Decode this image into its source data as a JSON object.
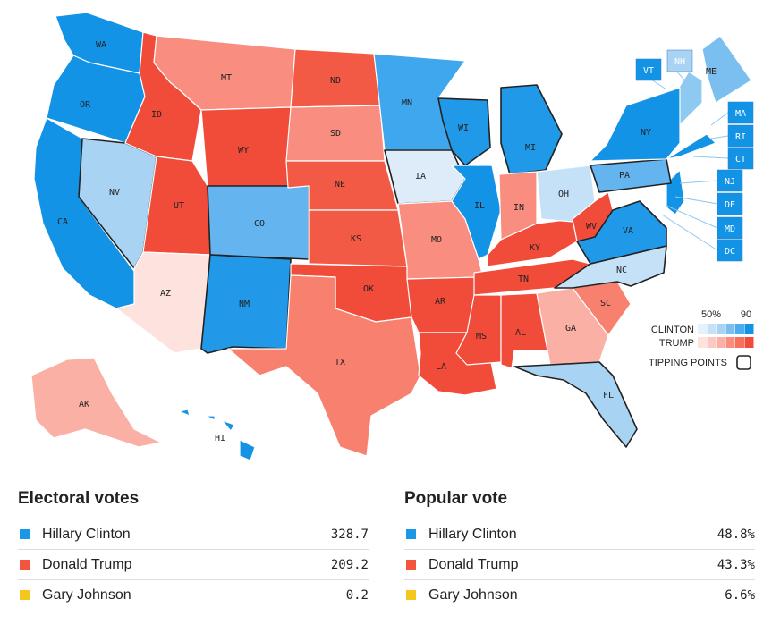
{
  "colors": {
    "clinton": "#1b97e8",
    "trump": "#f2543f",
    "johnson": "#f5c71d"
  },
  "map": {
    "states": [
      {
        "abbr": "WA",
        "fill": "#1393e6"
      },
      {
        "abbr": "OR",
        "fill": "#1393e6"
      },
      {
        "abbr": "CA",
        "fill": "#1393e6"
      },
      {
        "abbr": "NV",
        "fill": "#a8d3f3"
      },
      {
        "abbr": "ID",
        "fill": "#f04c39"
      },
      {
        "abbr": "MT",
        "fill": "#f98e80"
      },
      {
        "abbr": "WY",
        "fill": "#f04c39"
      },
      {
        "abbr": "UT",
        "fill": "#f04c39"
      },
      {
        "abbr": "AZ",
        "fill": "#fde2dd"
      },
      {
        "abbr": "CO",
        "fill": "#63b4ef"
      },
      {
        "abbr": "NM",
        "fill": "#2199e8"
      },
      {
        "abbr": "ND",
        "fill": "#f35a46"
      },
      {
        "abbr": "SD",
        "fill": "#f98e80"
      },
      {
        "abbr": "NE",
        "fill": "#f35a46"
      },
      {
        "abbr": "KS",
        "fill": "#f35a46"
      },
      {
        "abbr": "OK",
        "fill": "#f04c39"
      },
      {
        "abbr": "TX",
        "fill": "#f7806f"
      },
      {
        "abbr": "MN",
        "fill": "#3ea7ee"
      },
      {
        "abbr": "IA",
        "fill": "#deecfa"
      },
      {
        "abbr": "MO",
        "fill": "#f98e80"
      },
      {
        "abbr": "AR",
        "fill": "#f04c39"
      },
      {
        "abbr": "LA",
        "fill": "#f04c39"
      },
      {
        "abbr": "WI",
        "fill": "#1f99e8"
      },
      {
        "abbr": "IL",
        "fill": "#1393e6"
      },
      {
        "abbr": "MS",
        "fill": "#f04c39"
      },
      {
        "abbr": "MI",
        "fill": "#1f99e8"
      },
      {
        "abbr": "IN",
        "fill": "#f98e80"
      },
      {
        "abbr": "KY",
        "fill": "#f04c39"
      },
      {
        "abbr": "TN",
        "fill": "#f04c39"
      },
      {
        "abbr": "AL",
        "fill": "#f04c39"
      },
      {
        "abbr": "OH",
        "fill": "#c5e1f7"
      },
      {
        "abbr": "GA",
        "fill": "#fab0a5"
      },
      {
        "abbr": "FL",
        "fill": "#a8d3f3"
      },
      {
        "abbr": "SC",
        "fill": "#f7806f"
      },
      {
        "abbr": "NC",
        "fill": "#c5e1f7"
      },
      {
        "abbr": "WV",
        "fill": "#f04c39"
      },
      {
        "abbr": "VA",
        "fill": "#1f99e8"
      },
      {
        "abbr": "PA",
        "fill": "#63b4ef"
      },
      {
        "abbr": "NY",
        "fill": "#1393e6"
      },
      {
        "abbr": "ME",
        "fill": "#7bbff0"
      },
      {
        "abbr": "AK",
        "fill": "#fab0a5"
      },
      {
        "abbr": "HI",
        "fill": "#1393e6"
      }
    ],
    "boxed_states": [
      {
        "abbr": "VT",
        "fill": "#1393e6"
      },
      {
        "abbr": "NH",
        "fill": "#a8d3f3"
      },
      {
        "abbr": "MA",
        "fill": "#1393e6"
      },
      {
        "abbr": "RI",
        "fill": "#1393e6"
      },
      {
        "abbr": "CT",
        "fill": "#1393e6"
      },
      {
        "abbr": "NJ",
        "fill": "#1393e6"
      },
      {
        "abbr": "DE",
        "fill": "#1393e6"
      },
      {
        "abbr": "MD",
        "fill": "#1393e6"
      },
      {
        "abbr": "DC",
        "fill": "#1393e6"
      }
    ],
    "tipping_points": [
      "NV",
      "CO",
      "IA",
      "WI",
      "MI",
      "PA",
      "VA",
      "NC",
      "FL",
      "NM"
    ],
    "legend": {
      "scale_low": "50%",
      "scale_high": "90",
      "clinton_label": "CLINTON",
      "trump_label": "TRUMP",
      "tipping_label": "TIPPING POINTS",
      "clinton_ramp": [
        "#e5f2fc",
        "#c5e1f7",
        "#a8d3f3",
        "#7bbff0",
        "#4eacee",
        "#1393e6"
      ],
      "trump_ramp": [
        "#fde2dd",
        "#fcc9c1",
        "#fab0a5",
        "#f98e80",
        "#f5705d",
        "#f04c39"
      ]
    }
  },
  "electoral": {
    "title": "Electoral votes",
    "rows": [
      {
        "name": "Hillary Clinton",
        "value": "328.7"
      },
      {
        "name": "Donald Trump",
        "value": "209.2"
      },
      {
        "name": "Gary Johnson",
        "value": "0.2"
      }
    ]
  },
  "popular": {
    "title": "Popular vote",
    "rows": [
      {
        "name": "Hillary Clinton",
        "value": "48.8%"
      },
      {
        "name": "Donald Trump",
        "value": "43.3%"
      },
      {
        "name": "Gary Johnson",
        "value": "6.6%"
      }
    ]
  }
}
